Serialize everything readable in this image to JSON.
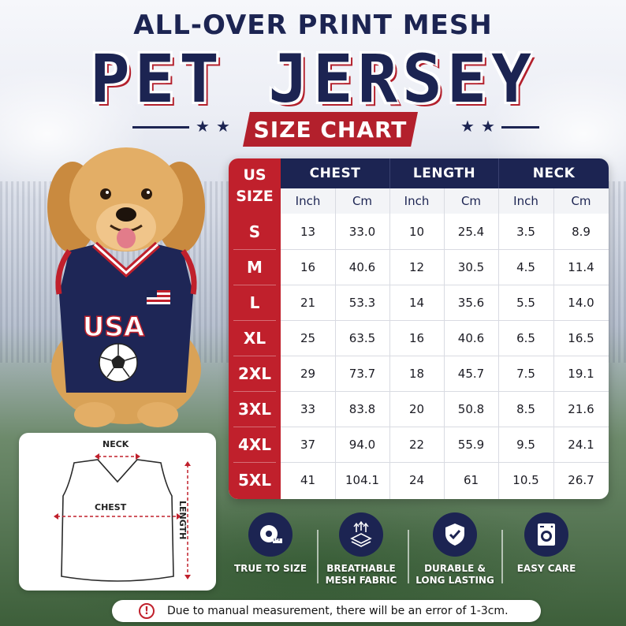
{
  "header": {
    "subtitle": "ALL-OVER PRINT MESH",
    "title": "PET JERSEY",
    "banner": "SIZE CHART"
  },
  "colors": {
    "navy": "#1c2452",
    "red": "#c0202c",
    "white": "#ffffff"
  },
  "dog": {
    "jersey_text": "USA",
    "jersey_icons": [
      "us-flag-icon",
      "soccer-ball-icon"
    ]
  },
  "table": {
    "size_header_line1": "US",
    "size_header_line2": "SIZE",
    "groups": [
      "CHEST",
      "LENGTH",
      "NECK"
    ],
    "units": [
      "Inch",
      "Cm",
      "Inch",
      "Cm",
      "Inch",
      "Cm"
    ],
    "rows": [
      {
        "size": "S",
        "values": [
          "13",
          "33.0",
          "10",
          "25.4",
          "3.5",
          "8.9"
        ]
      },
      {
        "size": "M",
        "values": [
          "16",
          "40.6",
          "12",
          "30.5",
          "4.5",
          "11.4"
        ]
      },
      {
        "size": "L",
        "values": [
          "21",
          "53.3",
          "14",
          "35.6",
          "5.5",
          "14.0"
        ]
      },
      {
        "size": "XL",
        "values": [
          "25",
          "63.5",
          "16",
          "40.6",
          "6.5",
          "16.5"
        ]
      },
      {
        "size": "2XL",
        "values": [
          "29",
          "73.7",
          "18",
          "45.7",
          "7.5",
          "19.1"
        ]
      },
      {
        "size": "3XL",
        "values": [
          "33",
          "83.8",
          "20",
          "50.8",
          "8.5",
          "21.6"
        ]
      },
      {
        "size": "4XL",
        "values": [
          "37",
          "94.0",
          "22",
          "55.9",
          "9.5",
          "24.1"
        ]
      },
      {
        "size": "5XL",
        "values": [
          "41",
          "104.1",
          "24",
          "61",
          "10.5",
          "26.7"
        ]
      }
    ]
  },
  "diagram": {
    "neck_label": "NECK",
    "chest_label": "CHEST",
    "length_label": "LENGTH"
  },
  "features": [
    {
      "icon": "tape-measure-icon",
      "label": "TRUE TO SIZE"
    },
    {
      "icon": "mesh-fabric-icon",
      "label": "BREATHABLE MESH FABRIC"
    },
    {
      "icon": "shield-check-icon",
      "label": "DURABLE & LONG LASTING"
    },
    {
      "icon": "washing-machine-icon",
      "label": "EASY CARE"
    }
  ],
  "note": {
    "icon": "exclamation-icon",
    "text": "Due to manual measurement, there will be an error of 1-3cm."
  }
}
